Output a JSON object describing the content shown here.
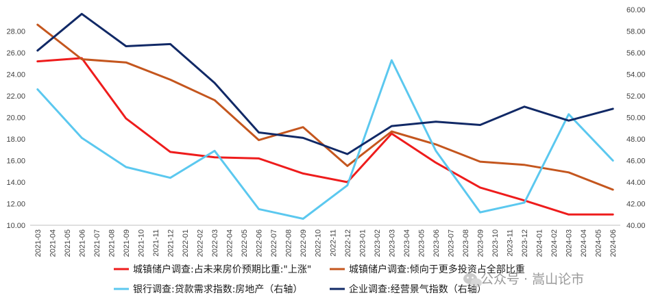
{
  "chart_data": {
    "type": "line",
    "title": "",
    "xlabel": "",
    "ylabel": "",
    "categories": [
      "2021-03",
      "2021-04",
      "2021-05",
      "2021-06",
      "2021-07",
      "2021-08",
      "2021-09",
      "2021-10",
      "2021-11",
      "2021-12",
      "2022-01",
      "2022-02",
      "2022-03",
      "2022-04",
      "2022-05",
      "2022-06",
      "2022-07",
      "2022-08",
      "2022-09",
      "2022-10",
      "2022-11",
      "2022-12",
      "2023-01",
      "2023-02",
      "2023-03",
      "2023-04",
      "2023-05",
      "2023-06",
      "2023-07",
      "2023-08",
      "2023-09",
      "2023-10",
      "2023-11",
      "2023-12",
      "2024-01",
      "2024-02",
      "2024-03",
      "2024-04",
      "2024-05",
      "2024-06"
    ],
    "ylim": [
      10,
      30
    ],
    "y_ticks": [
      "10.00",
      "12.00",
      "14.00",
      "16.00",
      "18.00",
      "20.00",
      "22.00",
      "24.00",
      "26.00",
      "28.00"
    ],
    "y2lim": [
      40,
      60
    ],
    "y2_ticks": [
      "40.00",
      "42.00",
      "44.00",
      "46.00",
      "48.00",
      "50.00",
      "52.00",
      "54.00",
      "56.00",
      "58.00",
      "60.00"
    ],
    "grid": false,
    "legend_position": "bottom",
    "series": [
      {
        "name": "城镇储户调查:占未来房价预期比重:\"上涨\"",
        "axis": "left",
        "color": "#ee1c1c",
        "x": [
          "2021-03",
          "2021-06",
          "2021-09",
          "2021-12",
          "2022-03",
          "2022-06",
          "2022-09",
          "2022-12",
          "2023-03",
          "2023-06",
          "2023-09",
          "2023-12",
          "2024-03",
          "2024-06"
        ],
        "y": [
          25.2,
          25.5,
          19.9,
          16.8,
          16.3,
          16.2,
          14.8,
          14.0,
          18.5,
          15.8,
          13.5,
          12.3,
          11.0,
          11.0
        ]
      },
      {
        "name": "城镇储户调查:倾向于更多投资占全部比重",
        "axis": "left",
        "color": "#c4561e",
        "x": [
          "2021-03",
          "2021-06",
          "2021-09",
          "2021-12",
          "2022-03",
          "2022-06",
          "2022-09",
          "2022-12",
          "2023-03",
          "2023-06",
          "2023-09",
          "2023-12",
          "2024-03",
          "2024-06"
        ],
        "y": [
          28.6,
          25.4,
          25.1,
          23.5,
          21.6,
          17.9,
          19.1,
          15.5,
          18.7,
          17.5,
          15.9,
          15.6,
          14.9,
          13.3
        ]
      },
      {
        "name": "银行调查:贷款需求指数:房地产（右轴）",
        "axis": "right",
        "color": "#5bc8ef",
        "x": [
          "2021-03",
          "2021-06",
          "2021-09",
          "2021-12",
          "2022-03",
          "2022-06",
          "2022-09",
          "2022-12",
          "2023-03",
          "2023-06",
          "2023-09",
          "2023-12",
          "2024-03",
          "2024-06"
        ],
        "y": [
          52.6,
          48.1,
          45.4,
          44.4,
          46.9,
          41.5,
          40.6,
          43.7,
          55.3,
          46.9,
          41.2,
          42.1,
          50.3,
          46.0
        ]
      },
      {
        "name": "企业调查:经营景气指数（右轴）",
        "axis": "right",
        "color": "#112966",
        "x": [
          "2021-03",
          "2021-06",
          "2021-09",
          "2021-12",
          "2022-03",
          "2022-06",
          "2022-09",
          "2022-12",
          "2023-03",
          "2023-06",
          "2023-09",
          "2023-12",
          "2024-03",
          "2024-06"
        ],
        "y": [
          56.2,
          59.6,
          56.6,
          56.8,
          53.2,
          48.6,
          48.1,
          46.6,
          49.2,
          49.6,
          49.3,
          51.0,
          49.7,
          50.8
        ]
      }
    ]
  },
  "watermark": {
    "text": "公众号 · 嵩山论市",
    "icon": "wechat-icon"
  }
}
